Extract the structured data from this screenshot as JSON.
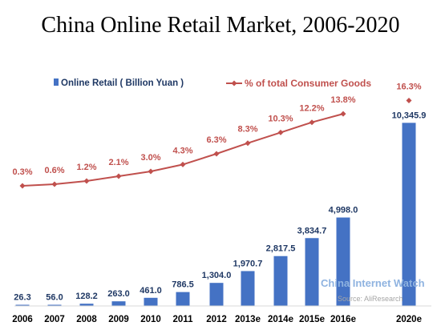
{
  "chart_data": {
    "type": "bar",
    "title": "China Online Retail Market, 2006-2020",
    "categories": [
      "2006",
      "2007",
      "2008",
      "2009",
      "2010",
      "2011",
      "2012",
      "2013e",
      "2014e",
      "2015e",
      "2016e",
      "2020e"
    ],
    "series": [
      {
        "name": "Online Retail ( Billion Yuan )",
        "kind": "bar",
        "color": "#4472c4",
        "values": [
          26.3,
          56.0,
          128.2,
          263.0,
          461.0,
          786.5,
          1304.0,
          1970.7,
          2817.5,
          3834.7,
          4998.0,
          10345.9
        ],
        "labels": [
          "26.3",
          "56.0",
          "128.2",
          "263.0",
          "461.0",
          "786.5",
          "1,304.0",
          "1,970.7",
          "2,817.5",
          "3,834.7",
          "4,998.0",
          "10,345.9"
        ]
      },
      {
        "name": "% of total Consumer Goods",
        "kind": "line",
        "color": "#c0504d",
        "values": [
          0.3,
          0.6,
          1.2,
          2.1,
          3.0,
          4.3,
          6.3,
          8.3,
          10.3,
          12.2,
          13.8,
          16.3
        ],
        "labels": [
          "0.3%",
          "0.6%",
          "1.2%",
          "2.1%",
          "3.0%",
          "4.3%",
          "6.3%",
          "8.3%",
          "10.3%",
          "12.2%",
          "13.8%",
          "16.3%"
        ],
        "line_break_before_last": true
      }
    ],
    "legend_placement": "top",
    "grid": false
  },
  "watermark": {
    "brand": "China Internet Watch",
    "source": "Source: AliResearch"
  }
}
